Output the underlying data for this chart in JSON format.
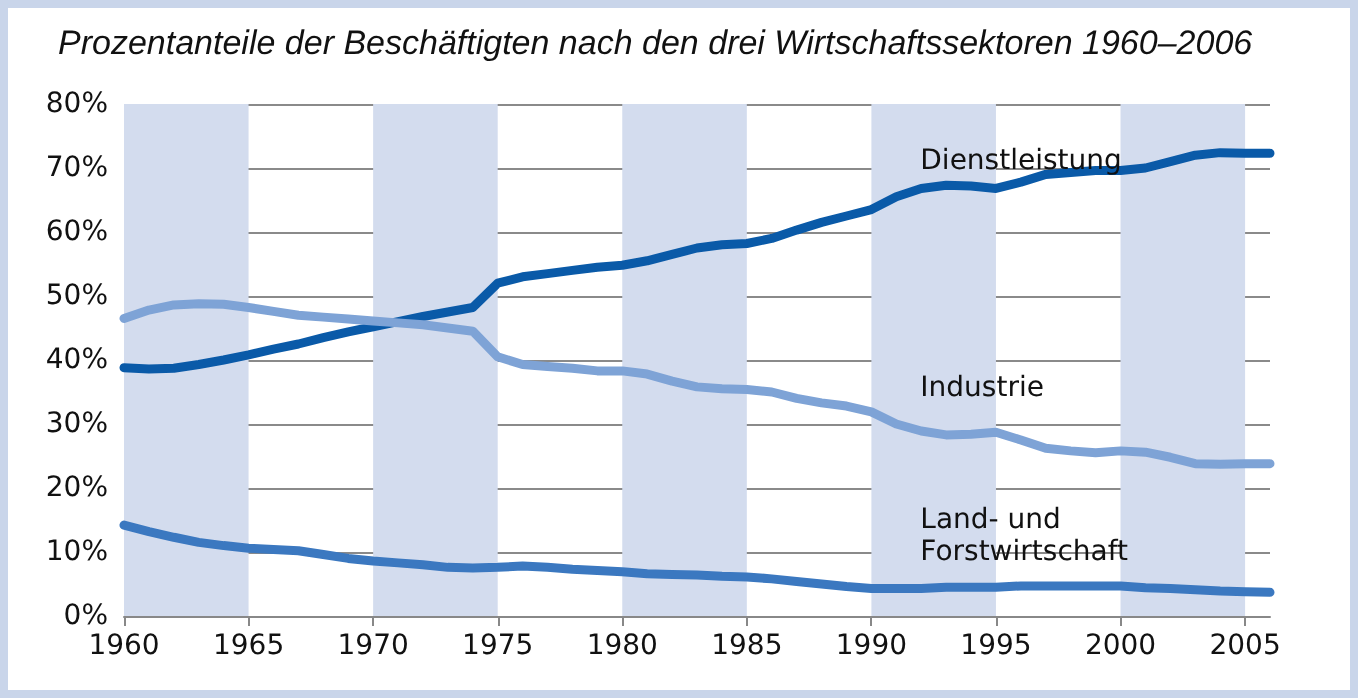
{
  "chart_data": {
    "type": "line",
    "title": "Prozentanteile der Beschäftigten nach den drei Wirtschaftssektoren 1960–2006",
    "x": [
      1960,
      1961,
      1962,
      1963,
      1964,
      1965,
      1966,
      1967,
      1968,
      1969,
      1970,
      1971,
      1972,
      1973,
      1974,
      1975,
      1976,
      1977,
      1978,
      1979,
      1980,
      1981,
      1982,
      1983,
      1984,
      1985,
      1986,
      1987,
      1988,
      1989,
      1990,
      1991,
      1992,
      1993,
      1994,
      1995,
      1996,
      1997,
      1998,
      1999,
      2000,
      2001,
      2002,
      2003,
      2004,
      2005,
      2006
    ],
    "series": [
      {
        "name": "Dienstleistung",
        "color": "#0a5aa8",
        "values": [
          38.8,
          38.6,
          38.7,
          39.3,
          40,
          40.8,
          41.7,
          42.5,
          43.5,
          44.4,
          45.2,
          46,
          46.8,
          47.5,
          48.2,
          52,
          53,
          53.5,
          54,
          54.5,
          54.8,
          55.5,
          56.5,
          57.5,
          58,
          58.2,
          59,
          60.3,
          61.5,
          62.5,
          63.5,
          65.5,
          66.8,
          67.3,
          67.2,
          66.8,
          67.8,
          69,
          69.3,
          69.6,
          69.6,
          70,
          71,
          72,
          72.4,
          72.3,
          72.3
        ]
      },
      {
        "name": "Industrie",
        "color": "#7ea3d6",
        "values": [
          46.5,
          47.8,
          48.6,
          48.8,
          48.7,
          48.2,
          47.6,
          47,
          46.7,
          46.4,
          46.1,
          45.8,
          45.5,
          45,
          44.5,
          40.5,
          39.3,
          39,
          38.7,
          38.3,
          38.3,
          37.8,
          36.7,
          35.8,
          35.5,
          35.4,
          35,
          34,
          33.3,
          32.8,
          31.9,
          30,
          28.9,
          28.3,
          28.4,
          28.7,
          27.5,
          26.2,
          25.8,
          25.5,
          25.8,
          25.6,
          24.8,
          23.8,
          23.7,
          23.8,
          23.8
        ]
      },
      {
        "name": "Land- und Forstwirtschaft",
        "color": "#3b78c0",
        "values": [
          14.2,
          13.2,
          12.3,
          11.5,
          11,
          10.6,
          10.4,
          10.2,
          9.6,
          9,
          8.6,
          8.3,
          8,
          7.6,
          7.5,
          7.6,
          7.8,
          7.6,
          7.3,
          7.1,
          6.9,
          6.6,
          6.5,
          6.4,
          6.2,
          6.1,
          5.8,
          5.4,
          5,
          4.6,
          4.3,
          4.3,
          4.3,
          4.5,
          4.5,
          4.5,
          4.7,
          4.7,
          4.7,
          4.7,
          4.7,
          4.4,
          4.3,
          4.1,
          3.9,
          3.8,
          3.7
        ]
      }
    ],
    "xlim": [
      1960,
      2006
    ],
    "xticks": [
      1960,
      1965,
      1970,
      1975,
      1980,
      1985,
      1990,
      1995,
      2000,
      2005
    ],
    "ylim": [
      0,
      80
    ],
    "yticks": [
      {
        "value": 0,
        "label": "0%"
      },
      {
        "value": 10,
        "label": "10%"
      },
      {
        "value": 20,
        "label": "20%"
      },
      {
        "value": 30,
        "label": "30%"
      },
      {
        "value": 40,
        "label": "40%"
      },
      {
        "value": 50,
        "label": "50%"
      },
      {
        "value": 60,
        "label": "60%"
      },
      {
        "value": 70,
        "label": "70%"
      },
      {
        "value": 80,
        "label": "80%"
      }
    ],
    "grid": "y",
    "legend": false,
    "marker": "none",
    "line_style": "solid",
    "bands": [
      {
        "axis": "x",
        "from": 1960,
        "to": 1965,
        "color": "#d3dcee"
      },
      {
        "axis": "x",
        "from": 1970,
        "to": 1975,
        "color": "#d3dcee"
      },
      {
        "axis": "x",
        "from": 1980,
        "to": 1985,
        "color": "#d3dcee"
      },
      {
        "axis": "x",
        "from": 1990,
        "to": 1995,
        "color": "#d3dcee"
      },
      {
        "axis": "x",
        "from": 2000,
        "to": 2005,
        "color": "#d3dcee"
      }
    ]
  }
}
